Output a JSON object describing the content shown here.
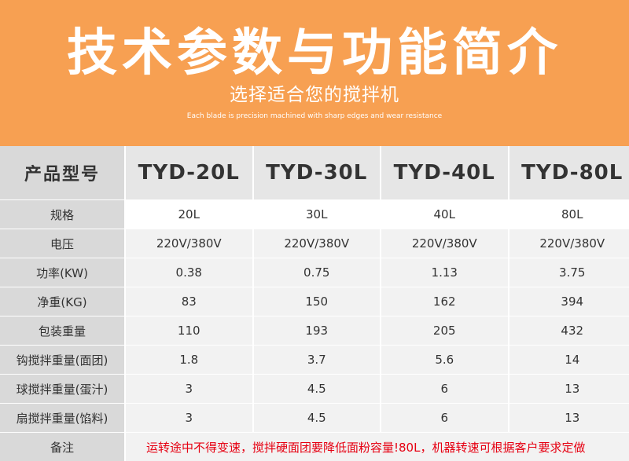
{
  "header": {
    "title": "技术参数与功能简介",
    "subtitle": "选择适合您的搅拌机",
    "tagline": "Each blade is precision machined with sharp edges and wear resistance"
  },
  "colors": {
    "header_bg": "#f7a052",
    "note_text": "#e60012"
  },
  "table": {
    "columns": [
      "产品型号",
      "TYD-20L",
      "TYD-30L",
      "TYD-40L",
      "TYD-80L"
    ],
    "rows": [
      {
        "label": "规格",
        "values": [
          "20L",
          "30L",
          "40L",
          "80L"
        ]
      },
      {
        "label": "电压",
        "values": [
          "220V/380V",
          "220V/380V",
          "220V/380V",
          "220V/380V"
        ]
      },
      {
        "label": "功率(KW)",
        "values": [
          "0.38",
          "0.75",
          "1.13",
          "3.75"
        ]
      },
      {
        "label": "净重(KG)",
        "values": [
          "83",
          "150",
          "162",
          "394"
        ]
      },
      {
        "label": "包装重量",
        "values": [
          "110",
          "193",
          "205",
          "432"
        ]
      },
      {
        "label": "钩搅拌重量(面团)",
        "values": [
          "1.8",
          "3.7",
          "5.6",
          "14"
        ]
      },
      {
        "label": "球搅拌重量(蛋汁)",
        "values": [
          "3",
          "4.5",
          "6",
          "13"
        ]
      },
      {
        "label": "扇搅拌重量(馅料)",
        "values": [
          "3",
          "4.5",
          "6",
          "13"
        ]
      }
    ],
    "note": {
      "label": "备注",
      "text": "运转途中不得变速，搅拌硬面团要降低面粉容量!80L，机器转速可根据客户要求定做"
    }
  }
}
